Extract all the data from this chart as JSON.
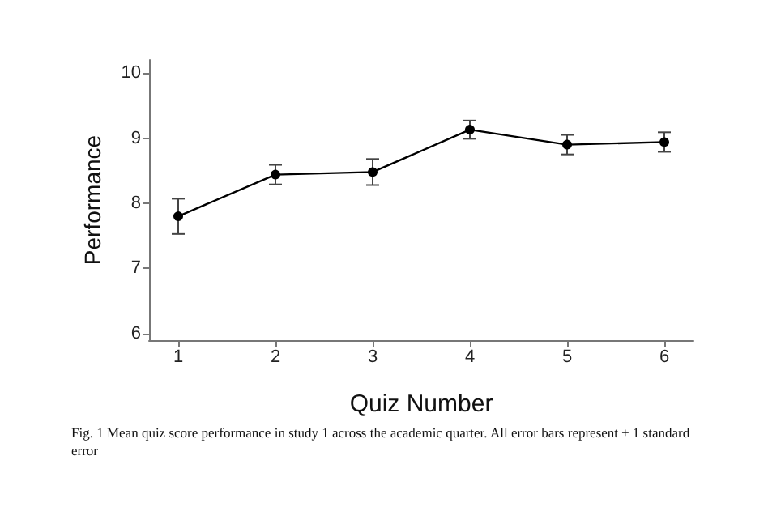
{
  "chart_data": {
    "type": "line",
    "xlabel": "Quiz Number",
    "ylabel": "Performance",
    "x": [
      1,
      2,
      3,
      4,
      5,
      6
    ],
    "values": [
      7.8,
      8.44,
      8.48,
      9.13,
      8.9,
      8.94
    ],
    "errors": [
      0.27,
      0.15,
      0.2,
      0.14,
      0.15,
      0.15
    ],
    "color": "#000000",
    "marker": "circle",
    "line_style": "solid",
    "xlim": [
      0.7,
      6.3
    ],
    "xticks": [
      1,
      2,
      3,
      4,
      5,
      6
    ],
    "ylim": [
      5.9,
      10.2
    ],
    "yticks": [
      6,
      7,
      8,
      9,
      10
    ],
    "annotations": [
      "Fig. 1  Mean quiz score performance in study 1 across the academic quarter. All error bars represent ± 1 standard error"
    ]
  }
}
